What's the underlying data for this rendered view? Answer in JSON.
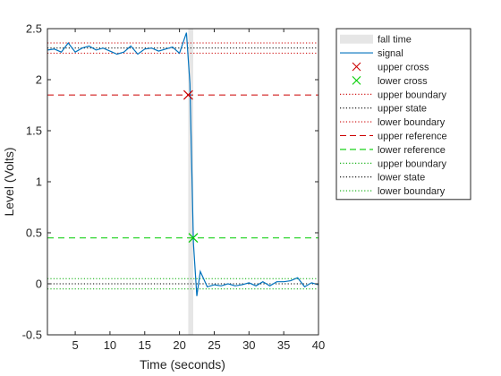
{
  "chart_data": {
    "type": "line",
    "xlabel": "Time (seconds)",
    "ylabel": "Level (Volts)",
    "xlim": [
      1,
      40
    ],
    "ylim": [
      -0.5,
      2.5
    ],
    "xticks": [
      5,
      10,
      15,
      20,
      25,
      30,
      35,
      40
    ],
    "yticks": [
      -0.5,
      0,
      0.5,
      1,
      1.5,
      2,
      2.5
    ],
    "xtick_labels": [
      "5",
      "10",
      "15",
      "20",
      "25",
      "30",
      "35",
      "40"
    ],
    "ytick_labels": [
      "-0.5",
      "0",
      "0.5",
      "1",
      "1.5",
      "2",
      "2.5"
    ],
    "grid": false,
    "legend_position": "outside-right",
    "fall_time_interval": [
      21.26,
      21.98
    ],
    "signal": {
      "name": "signal",
      "color": "#0072bd",
      "x": [
        1,
        2,
        3,
        4,
        5,
        6,
        7,
        8,
        9,
        10,
        11,
        12,
        13,
        14,
        15,
        16,
        17,
        18,
        19,
        20,
        21,
        21.5,
        22,
        22.5,
        23,
        24,
        25,
        26,
        27,
        28,
        29,
        30,
        31,
        32,
        33,
        34,
        35,
        36,
        37,
        38,
        39,
        40
      ],
      "y": [
        2.29,
        2.3,
        2.27,
        2.36,
        2.27,
        2.31,
        2.33,
        2.29,
        2.31,
        2.28,
        2.25,
        2.27,
        2.33,
        2.25,
        2.3,
        2.31,
        2.28,
        2.3,
        2.32,
        2.26,
        2.46,
        1.96,
        0.4,
        -0.12,
        0.12,
        -0.03,
        -0.01,
        -0.02,
        0.0,
        -0.02,
        -0.01,
        0.01,
        -0.02,
        0.02,
        -0.02,
        0.02,
        0.02,
        0.03,
        0.06,
        -0.03,
        0.01,
        -0.01
      ]
    },
    "upper_cross": {
      "x": 21.26,
      "y": 1.85,
      "color": "#cc0000"
    },
    "lower_cross": {
      "x": 21.98,
      "y": 0.45,
      "color": "#00cc00"
    },
    "upper_state": 2.31,
    "upper_state_boundaries": [
      2.26,
      2.36
    ],
    "lower_state": 0.0,
    "lower_state_boundaries": [
      -0.05,
      0.05
    ],
    "upper_reference": 1.85,
    "lower_reference": 0.45,
    "legend": [
      {
        "label": "fall time",
        "style": "patch",
        "color": "#e6e6e6"
      },
      {
        "label": "signal",
        "style": "solid",
        "color": "#0072bd"
      },
      {
        "label": "upper cross",
        "style": "xmarker",
        "color": "#cc0000"
      },
      {
        "label": "lower cross",
        "style": "xmarker",
        "color": "#00cc00"
      },
      {
        "label": "upper boundary",
        "style": "dotted",
        "color": "#cc0000"
      },
      {
        "label": "upper state",
        "style": "dotted",
        "color": "#000000"
      },
      {
        "label": "lower boundary",
        "style": "dotted",
        "color": "#cc0000"
      },
      {
        "label": "upper reference",
        "style": "dashed",
        "color": "#cc0000"
      },
      {
        "label": "lower reference",
        "style": "dashed",
        "color": "#00cc00"
      },
      {
        "label": "upper boundary",
        "style": "dotted",
        "color": "#00aa00"
      },
      {
        "label": "lower state",
        "style": "dotted",
        "color": "#000000"
      },
      {
        "label": "lower boundary",
        "style": "dotted",
        "color": "#00aa00"
      }
    ]
  }
}
